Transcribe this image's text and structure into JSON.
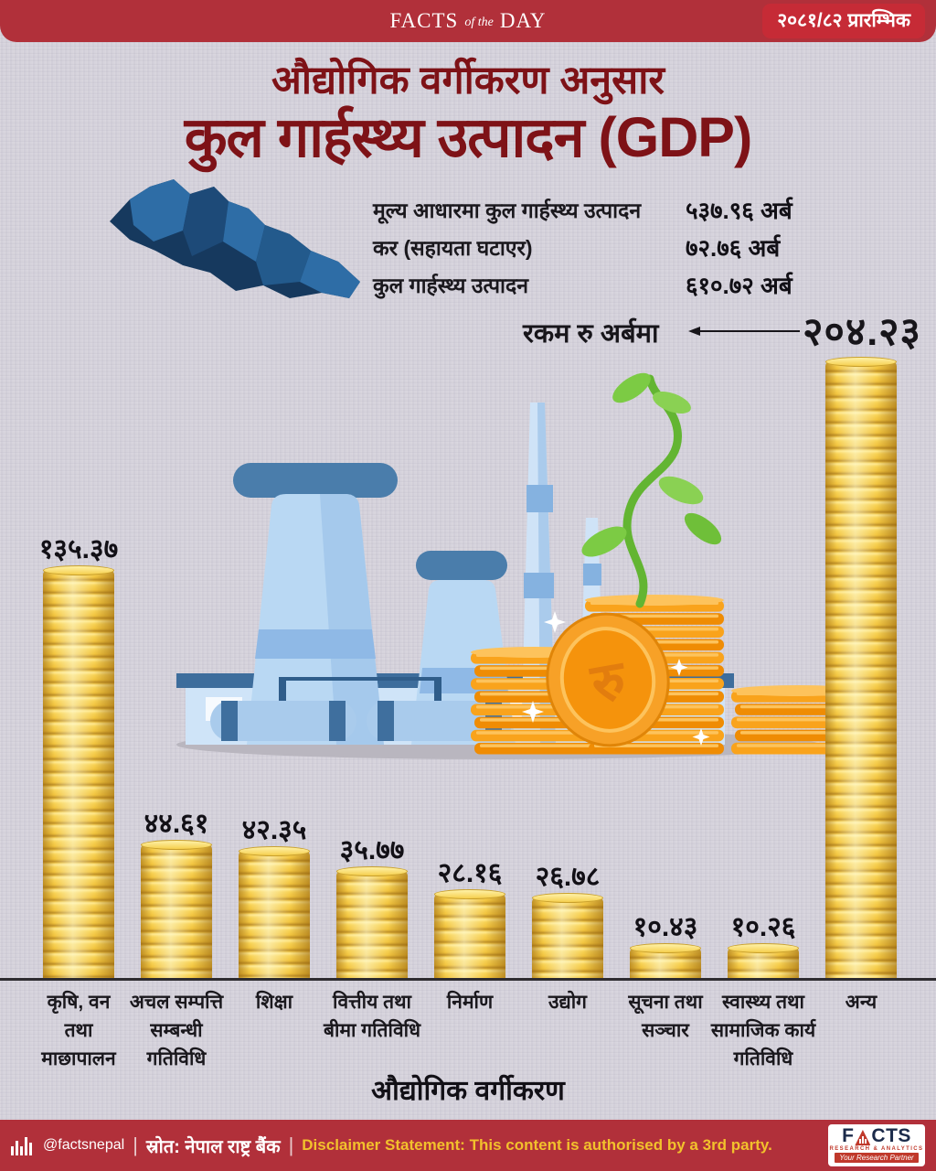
{
  "header": {
    "brand_facts": "FACTS",
    "brand_of_the": "of the",
    "brand_day": "DAY",
    "year_badge": "२०८१/८२ प्रारम्भिक"
  },
  "title": {
    "subtitle": "औद्योगिक वर्गीकरण अनुसार",
    "main": "कुल गार्हस्थ्य उत्पादन (GDP)"
  },
  "summary": {
    "rows": [
      {
        "label": "मूल्य आधारमा कुल गार्हस्थ्य उत्पादन",
        "value": "५३७.९६ अर्ब"
      },
      {
        "label": "कर (सहायता घटाएर)",
        "value": "७२.७६ अर्ब"
      },
      {
        "label": "कुल गार्हस्थ्य उत्पादन",
        "value": "६१०.७२ अर्ब"
      }
    ]
  },
  "annotation": {
    "unit_note": "रकम रु अर्बमा"
  },
  "illustration": {
    "coin_symbol": "रु"
  },
  "chart_data": {
    "type": "bar",
    "title": "औद्योगिक वर्गीकरण अनुसार कुल गार्हस्थ्य उत्पादन (GDP)",
    "xlabel": "औद्योगिक वर्गीकरण",
    "unit": "रकम रु अर्बमा",
    "ylim": [
      0,
      210
    ],
    "grid": false,
    "legend": null,
    "categories": [
      "कृषि, वन तथा माछापालन",
      "अचल सम्पत्ति सम्बन्धी गतिविधि",
      "शिक्षा",
      "वित्तीय तथा बीमा गतिविधि",
      "निर्माण",
      "उद्योग",
      "सूचना तथा सञ्चार",
      "स्वास्थ्य तथा सामाजिक कार्य गतिविधि",
      "अन्य"
    ],
    "category_lines": [
      [
        "कृषि, वन",
        "तथा",
        "माछापालन"
      ],
      [
        "अचल सम्पत्ति",
        "सम्बन्धी",
        "गतिविधि"
      ],
      [
        "शिक्षा"
      ],
      [
        "वित्तीय तथा",
        "बीमा गतिविधि"
      ],
      [
        "निर्माण"
      ],
      [
        "उद्योग"
      ],
      [
        "सूचना तथा",
        "सञ्चार"
      ],
      [
        "स्वास्थ्य तथा",
        "सामाजिक कार्य",
        "गतिविधि"
      ],
      [
        "अन्य"
      ]
    ],
    "values": [
      135.37,
      44.61,
      42.35,
      35.77,
      28.16,
      26.78,
      10.43,
      10.26,
      204.23
    ],
    "value_labels": [
      "१३५.३७",
      "४४.६१",
      "४२.३५",
      "३५.७७",
      "२८.१६",
      "२६.७८",
      "१०.४३",
      "१०.२६",
      "२०४.२३"
    ]
  },
  "footer": {
    "handle": "@factsnepal",
    "separator": "|",
    "source": "स्रोत: नेपाल राष्ट्र बैंक",
    "disclaimer": "Disclaimer Statement: This content is authorised by a 3rd party.",
    "logo": {
      "f": "F",
      "cts": "CTS",
      "sub": "RESEARCH & ANALYTICS",
      "tagline": "Your Research Partner"
    }
  },
  "colors": {
    "background": "#d6d3dc",
    "header_red": "#b1303a",
    "badge_red": "#c62b36",
    "title_maroon": "#7e1217",
    "text_black": "#17151a",
    "coin_gold": "#f7d155",
    "coin_gold_dark": "#bd8f28",
    "coin_orange": "#f9a31c",
    "coin_orange_dark": "#ef8c04",
    "accent_yellow": "#f2c12c",
    "map_blue_dark": "#16395e",
    "map_blue_light": "#2e6da6",
    "factory_blue": "#b9d8f3",
    "factory_blue_cap": "#4a7dab",
    "plant_green": "#6fc23c"
  }
}
